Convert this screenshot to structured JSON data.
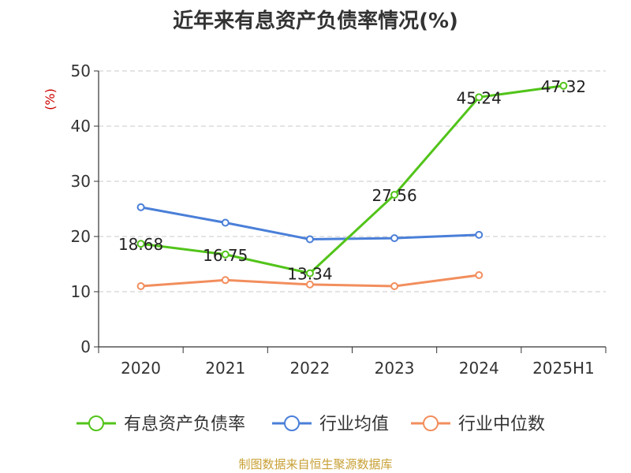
{
  "chart_data": {
    "type": "line",
    "title": "近年来有息资产负债率情况(%)",
    "ylabel": "(%)",
    "categories": [
      "2020",
      "2021",
      "2022",
      "2023",
      "2024",
      "2025H1"
    ],
    "ylim": [
      0,
      50
    ],
    "yticks": [
      0,
      10,
      20,
      30,
      40,
      50
    ],
    "grid": true,
    "legend_position": "bottom",
    "series": [
      {
        "name": "有息资产负债率",
        "color": "#52c41a",
        "values": [
          18.68,
          16.75,
          13.34,
          27.56,
          45.24,
          47.32
        ],
        "labeled": true
      },
      {
        "name": "行业均值",
        "color": "#4a7fd8",
        "values": [
          25.3,
          22.5,
          19.5,
          19.7,
          20.3,
          null
        ],
        "labeled": false
      },
      {
        "name": "行业中位数",
        "color": "#f28e5d",
        "values": [
          11.0,
          12.1,
          11.3,
          11.0,
          13.0,
          null
        ],
        "labeled": false
      }
    ],
    "data_labels": [
      "18.68",
      "16.75",
      "13.34",
      "27.56",
      "45.24",
      "47.32"
    ]
  },
  "footer": {
    "source": "制图数据来自恒生聚源数据库"
  }
}
